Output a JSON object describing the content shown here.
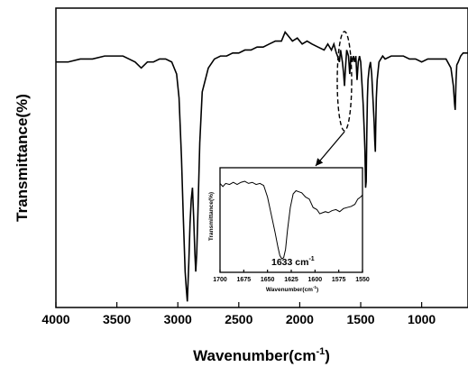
{
  "chart_data": {
    "type": "line",
    "title": "",
    "xlabel": "Wavenumber(cm",
    "xlabel_sup": "-1",
    "xlabel_close": ")",
    "ylabel": "Transmittance(%)",
    "xlim": [
      4000,
      620
    ],
    "x_reversed": true,
    "yticks_shown": false,
    "grid": false,
    "xticks": [
      "4000",
      "3500",
      "3000",
      "2500",
      "2000",
      "1500",
      "1000"
    ],
    "xtick_values": [
      4000,
      3500,
      3000,
      2500,
      2000,
      1500,
      1000
    ],
    "ylim": [
      0,
      100
    ],
    "series": [
      {
        "x": [
          4000,
          3900,
          3800,
          3700,
          3600,
          3500,
          3450,
          3400,
          3350,
          3300,
          3250,
          3200,
          3150,
          3100,
          3050,
          3010,
          2990,
          2970,
          2955,
          2940,
          2930,
          2922,
          2910,
          2900,
          2890,
          2880,
          2870,
          2860,
          2853,
          2845,
          2835,
          2820,
          2800,
          2750,
          2700,
          2650,
          2600,
          2550,
          2500,
          2450,
          2400,
          2350,
          2300,
          2250,
          2200,
          2150,
          2120,
          2100,
          2060,
          2020,
          1980,
          1940,
          1900,
          1850,
          1800,
          1770,
          1740,
          1720,
          1700,
          1690,
          1675,
          1665,
          1650,
          1640,
          1633,
          1625,
          1615,
          1600,
          1590,
          1580,
          1570,
          1560,
          1550,
          1540,
          1530,
          1520,
          1510,
          1500,
          1490,
          1480,
          1470,
          1465,
          1460,
          1455,
          1450,
          1445,
          1440,
          1430,
          1420,
          1410,
          1400,
          1390,
          1385,
          1380,
          1377,
          1372,
          1365,
          1350,
          1320,
          1300,
          1250,
          1200,
          1150,
          1100,
          1050,
          1000,
          950,
          900,
          850,
          800,
          760,
          740,
          730,
          725,
          722,
          718,
          712,
          700,
          680,
          660,
          640,
          620
        ],
        "y": [
          82,
          82,
          83,
          83,
          84,
          84,
          84,
          83,
          82,
          80,
          82,
          82,
          83,
          83,
          82,
          78,
          70,
          50,
          30,
          12,
          6,
          2,
          15,
          28,
          36,
          40,
          30,
          18,
          12,
          18,
          32,
          55,
          72,
          80,
          83,
          84,
          84,
          85,
          85,
          86,
          86,
          87,
          87,
          88,
          89,
          89,
          92,
          91,
          89,
          90,
          88,
          89,
          88,
          87,
          86,
          88,
          86,
          88,
          85,
          84,
          82,
          86,
          82,
          78,
          74,
          80,
          86,
          84,
          78,
          84,
          82,
          84,
          82,
          84,
          76,
          82,
          84,
          82,
          75,
          68,
          58,
          52,
          40,
          42,
          58,
          70,
          76,
          80,
          82,
          78,
          70,
          62,
          56,
          52,
          60,
          70,
          76,
          82,
          84,
          83,
          84,
          84,
          84,
          83,
          83,
          82,
          83,
          83,
          83,
          83,
          80,
          74,
          68,
          66,
          70,
          76,
          81,
          82,
          84,
          85,
          85,
          85
        ]
      }
    ],
    "annotations": {
      "highlight_ellipse_center_x": 1633,
      "arrow_from_x": 1633
    },
    "inset": {
      "type": "line",
      "xlabel": "Wavenumber(cm",
      "xlabel_sup": "-1",
      "xlabel_close": ")",
      "ylabel": "Transmittance(%)",
      "xlim": [
        1700,
        1550
      ],
      "x_reversed": true,
      "xticks": [
        "1700",
        "1675",
        "1650",
        "1625",
        "1600",
        "1575",
        "1550"
      ],
      "xtick_values": [
        1700,
        1675,
        1650,
        1625,
        1600,
        1575,
        1550
      ],
      "ylim": [
        0,
        100
      ],
      "peak_label": "1633  cm",
      "peak_label_sup": "-1",
      "series": [
        {
          "x": [
            1700,
            1697,
            1694,
            1690,
            1686,
            1682,
            1678,
            1674,
            1670,
            1666,
            1662,
            1658,
            1654,
            1650,
            1646,
            1642,
            1639,
            1637,
            1635,
            1633,
            1631,
            1629,
            1626,
            1623,
            1620,
            1617,
            1614,
            1610,
            1606,
            1602,
            1598,
            1595,
            1592,
            1589,
            1586,
            1582,
            1578,
            1574,
            1570,
            1566,
            1562,
            1558,
            1555,
            1552,
            1550
          ],
          "y": [
            85,
            82,
            85,
            84,
            86,
            84,
            86,
            87,
            85,
            86,
            84,
            85,
            83,
            72,
            55,
            38,
            24,
            16,
            13,
            14,
            22,
            40,
            62,
            75,
            78,
            77,
            76,
            72,
            70,
            62,
            60,
            56,
            57,
            58,
            57,
            59,
            60,
            58,
            61,
            62,
            63,
            65,
            70,
            72,
            74
          ]
        }
      ]
    }
  }
}
